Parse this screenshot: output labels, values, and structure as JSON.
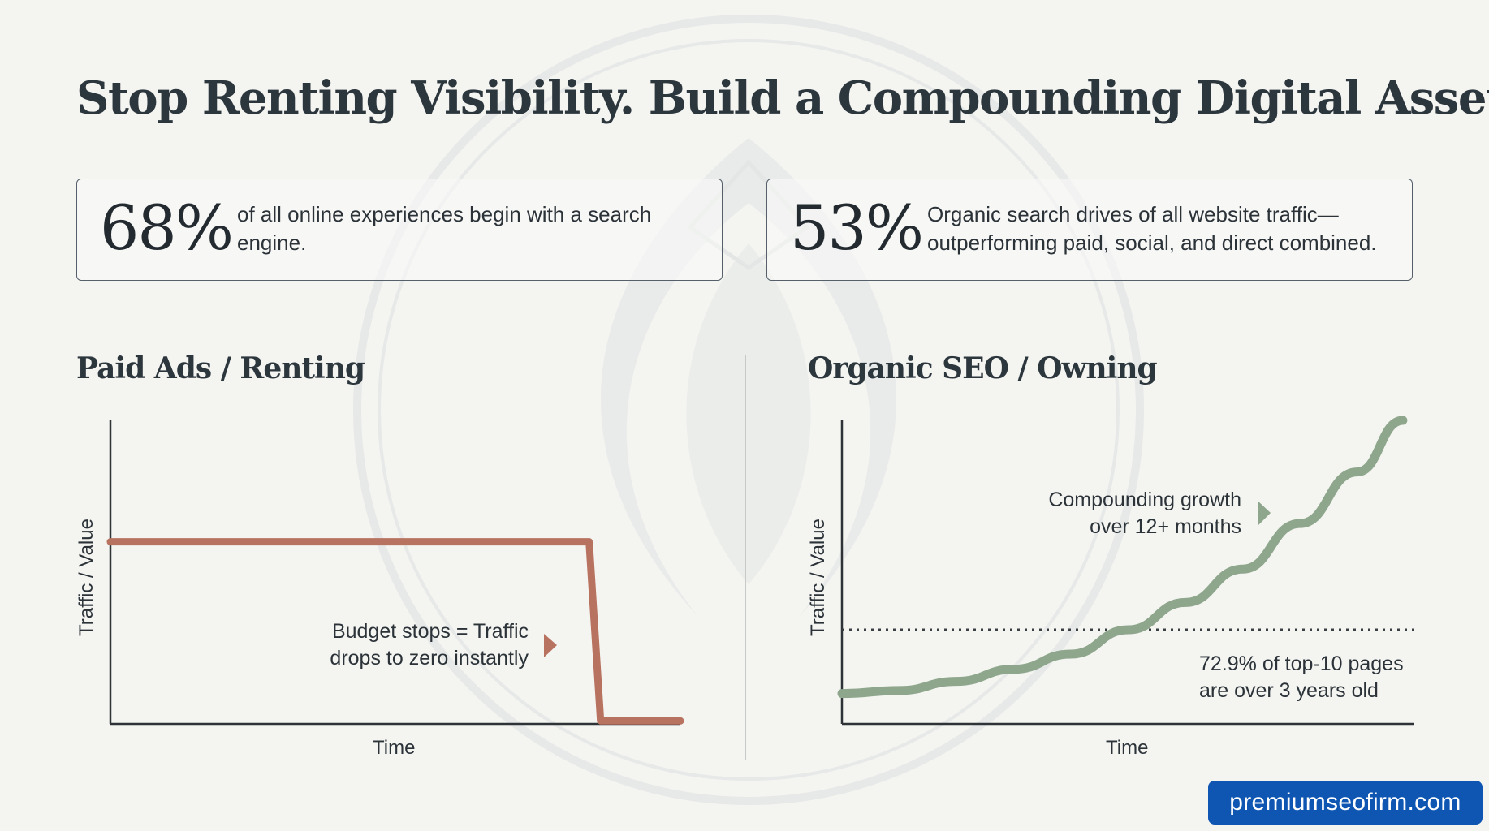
{
  "title": "Stop Renting Visibility. Build a Compounding Digital Asset.",
  "stats": [
    {
      "value": "68%",
      "text": "of all online experiences begin with a search engine."
    },
    {
      "value": "53%",
      "text": "Organic search drives of all website traffic—outperforming paid, social, and direct combined."
    }
  ],
  "badge": "premiumseofirm.com",
  "colors": {
    "paid": "#b87260",
    "organic": "#8ea68c",
    "axis": "#2e3338"
  },
  "chart_data": [
    {
      "type": "line",
      "title": "Paid Ads / Renting",
      "xlabel": "Time",
      "ylabel": "Traffic / Value",
      "xlim": [
        0,
        10
      ],
      "ylim": [
        0,
        10
      ],
      "series": [
        {
          "x": [
            0,
            8.4,
            8.6,
            10
          ],
          "y": [
            6,
            6,
            0.1,
            0.1
          ]
        }
      ],
      "annotations": [
        {
          "text": "Budget stops = Traffic drops to zero instantly",
          "lines": [
            "Budget stops = Traffic",
            "drops to zero instantly"
          ],
          "x": 7.7,
          "y": 2.6
        }
      ],
      "grid": false
    },
    {
      "type": "line",
      "title": "Organic SEO / Owning",
      "xlabel": "Time",
      "ylabel": "Traffic / Value",
      "xlim": [
        0,
        10
      ],
      "ylim": [
        0,
        10
      ],
      "series": [
        {
          "x": [
            0,
            1,
            2,
            3,
            4,
            5,
            6,
            7,
            8,
            9,
            9.8
          ],
          "y": [
            1.0,
            1.1,
            1.4,
            1.8,
            2.3,
            3.1,
            4.0,
            5.1,
            6.6,
            8.3,
            10.0
          ]
        }
      ],
      "reference_line": {
        "y": 3.1,
        "style": "dotted"
      },
      "annotations": [
        {
          "text": "Compounding growth over 12+ months",
          "lines": [
            "Compounding growth",
            "over 12+ months"
          ],
          "x": 7.4,
          "y": 7.0
        },
        {
          "text": "72.9% of top-10 pages are over 3 years old",
          "lines": [
            "72.9% of top-10 pages",
            "are over 3 years old"
          ],
          "x": 6.2,
          "y": 1.5
        }
      ],
      "grid": false
    }
  ]
}
